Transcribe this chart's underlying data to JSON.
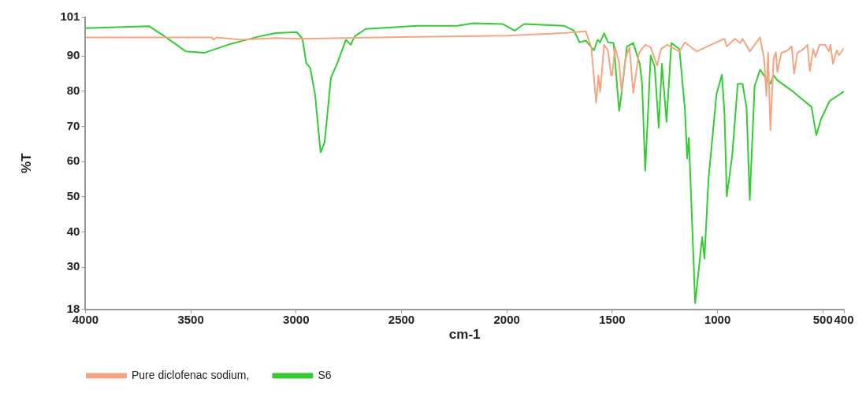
{
  "chart_data": {
    "type": "line",
    "xlabel": "cm-1",
    "ylabel": "%T",
    "xlim": [
      4000,
      400
    ],
    "xticks": [
      4000,
      3500,
      3000,
      2500,
      2000,
      1500,
      1000,
      500,
      400
    ],
    "ylim": [
      18,
      101
    ],
    "yticks": [
      18,
      30,
      40,
      50,
      60,
      70,
      80,
      90,
      101
    ],
    "grid": false,
    "legend": "bottom",
    "marker": "none",
    "line_style": "solid",
    "series": [
      {
        "name": "Pure diclofenac sodium,",
        "color": "#f4a582",
        "x": [
          4000,
          3400,
          3391,
          3380,
          3260,
          3098,
          2985,
          2500,
          2000,
          1730,
          1625,
          1599,
          1576,
          1565,
          1557,
          1538,
          1520,
          1505,
          1500,
          1486,
          1467,
          1456,
          1437,
          1418,
          1400,
          1373,
          1343,
          1317,
          1287,
          1268,
          1238,
          1181,
          1155,
          1099,
          1050,
          967,
          956,
          918,
          892,
          881,
          847,
          798,
          779,
          768,
          760,
          749,
          734,
          723,
          716,
          697,
          667,
          648,
          636,
          621,
          591,
          573,
          562,
          546,
          535,
          516,
          490,
          471,
          464,
          452,
          434,
          423,
          403
        ],
        "values": [
          95.3,
          95.3,
          94.6,
          95.3,
          94.6,
          95.1,
          94.9,
          95.4,
          95.8,
          96.5,
          97.0,
          92.5,
          76.7,
          84.5,
          79.8,
          93.2,
          91.6,
          84.5,
          84.5,
          92.5,
          88.0,
          80.0,
          89.2,
          92.5,
          79.5,
          90.9,
          93.2,
          92.5,
          87.3,
          92.0,
          93.2,
          91.3,
          93.9,
          91.3,
          92.7,
          94.9,
          92.7,
          94.9,
          93.7,
          94.9,
          91.3,
          95.3,
          89.2,
          78.6,
          90.9,
          68.9,
          89.2,
          91.1,
          85.4,
          90.9,
          91.6,
          92.7,
          85.0,
          90.9,
          92.0,
          93.2,
          85.7,
          92.0,
          89.7,
          93.2,
          93.2,
          91.3,
          93.2,
          87.8,
          91.6,
          90.2,
          92.0
        ]
      },
      {
        "name": "S6",
        "color": "#33cc33",
        "x": [
          4000,
          3699,
          3624,
          3523,
          3436,
          3324,
          3173,
          3098,
          2997,
          2970,
          2952,
          2933,
          2910,
          2884,
          2865,
          2854,
          2835,
          2801,
          2764,
          2741,
          2722,
          2670,
          2422,
          2234,
          2181,
          2159,
          2020,
          1963,
          1918,
          1730,
          1681,
          1655,
          1625,
          1587,
          1569,
          1557,
          1538,
          1520,
          1493,
          1467,
          1456,
          1430,
          1400,
          1369,
          1358,
          1343,
          1317,
          1298,
          1279,
          1264,
          1242,
          1219,
          1181,
          1155,
          1144,
          1136,
          1106,
          1073,
          1062,
          1043,
          1005,
          979,
          967,
          956,
          930,
          904,
          881,
          862,
          847,
          824,
          798,
          772,
          749,
          734,
          716,
          640,
          554,
          531,
          509,
          468,
          403
        ],
        "values": [
          97.9,
          98.5,
          95.6,
          91.3,
          90.9,
          93.2,
          95.6,
          96.5,
          96.8,
          94.9,
          88.0,
          86.6,
          79.0,
          62.6,
          65.4,
          72.0,
          83.8,
          88.5,
          94.6,
          93.2,
          95.6,
          97.7,
          98.6,
          98.6,
          99.1,
          99.3,
          99.1,
          97.2,
          99.1,
          98.6,
          97.2,
          93.9,
          94.4,
          91.6,
          94.6,
          93.9,
          96.5,
          93.9,
          93.7,
          74.4,
          79.1,
          92.7,
          93.7,
          87.8,
          82.1,
          57.4,
          90.2,
          86.9,
          69.6,
          87.8,
          71.3,
          93.7,
          92.0,
          75.1,
          60.9,
          66.8,
          19.7,
          38.5,
          32.4,
          54.8,
          79.1,
          84.7,
          73.6,
          50.1,
          61.9,
          82.1,
          82.1,
          75.1,
          49.1,
          81.4,
          86.1,
          83.8,
          82.1,
          84.5,
          83.1,
          79.8,
          75.5,
          67.5,
          72.0,
          77.2,
          79.8
        ]
      }
    ]
  }
}
